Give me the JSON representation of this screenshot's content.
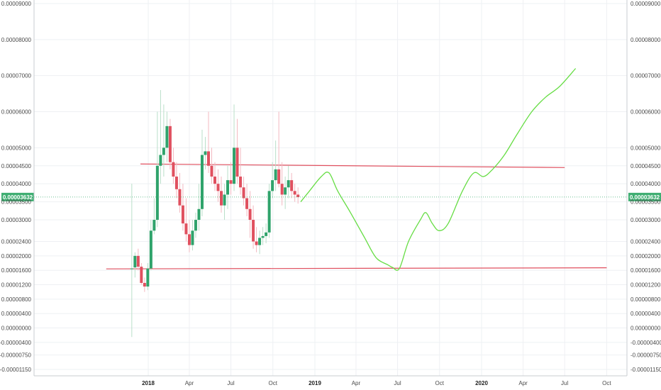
{
  "chart_data": {
    "type": "candlestick",
    "instrument": "price",
    "ylim": [
      -1.15e-05,
      9e-05
    ],
    "y_ticks": [
      {
        "value": 9e-05,
        "label": "0.00009000"
      },
      {
        "value": 8e-05,
        "label": "0.00008000"
      },
      {
        "value": 7e-05,
        "label": "0.00007000"
      },
      {
        "value": 6e-05,
        "label": "0.00006000"
      },
      {
        "value": 5e-05,
        "label": "0.00005000"
      },
      {
        "value": 4.5e-05,
        "label": "0.00004500"
      },
      {
        "value": 4e-05,
        "label": "0.00004000"
      },
      {
        "value": 3.5e-05,
        "label": "0.00003500"
      },
      {
        "value": 3e-05,
        "label": "0.00003000"
      },
      {
        "value": 2.4e-05,
        "label": "0.00002400"
      },
      {
        "value": 2e-05,
        "label": "0.00002000"
      },
      {
        "value": 1.6e-05,
        "label": "0.00001600"
      },
      {
        "value": 1.2e-05,
        "label": "0.00001200"
      },
      {
        "value": 8e-06,
        "label": "0.00000800"
      },
      {
        "value": 4e-06,
        "label": "0.00000400"
      },
      {
        "value": 0.0,
        "label": "0.00000000"
      },
      {
        "value": -4e-06,
        "label": "-0.00000400"
      },
      {
        "value": -7.5e-06,
        "label": "-0.00000750"
      },
      {
        "value": -1.15e-05,
        "label": "-0.00001150"
      }
    ],
    "x_ticks": [
      {
        "date": "2018-01-01",
        "label": "2018",
        "bold": true
      },
      {
        "date": "2018-04-01",
        "label": "Apr",
        "bold": false
      },
      {
        "date": "2018-07-01",
        "label": "Jul",
        "bold": false
      },
      {
        "date": "2018-10-01",
        "label": "Oct",
        "bold": false
      },
      {
        "date": "2019-01-01",
        "label": "2019",
        "bold": true
      },
      {
        "date": "2019-04-01",
        "label": "Apr",
        "bold": false
      },
      {
        "date": "2019-07-01",
        "label": "Jul",
        "bold": false
      },
      {
        "date": "2019-10-01",
        "label": "Oct",
        "bold": false
      },
      {
        "date": "2020-01-01",
        "label": "2020",
        "bold": true
      },
      {
        "date": "2020-04-01",
        "label": "Apr",
        "bold": false
      },
      {
        "date": "2020-07-01",
        "label": "Jul",
        "bold": false
      },
      {
        "date": "2020-10-01",
        "label": "Oct",
        "bold": false
      }
    ],
    "current_price": {
      "value": 3.632e-05,
      "label": "0.00003632"
    },
    "candles": [
      {
        "date": "2017-11-26",
        "o": 1.65e-05,
        "h": 4e-05,
        "l": -2.5e-06,
        "c": 1.65e-05
      },
      {
        "date": "2017-12-03",
        "o": 1.68e-05,
        "h": 2.1e-05,
        "l": 1.4e-05,
        "c": 2e-05
      },
      {
        "date": "2017-12-10",
        "o": 2e-05,
        "h": 2.2e-05,
        "l": 1.6e-05,
        "c": 1.7e-05
      },
      {
        "date": "2017-12-17",
        "o": 1.7e-05,
        "h": 1.8e-05,
        "l": 1.2e-05,
        "c": 1.25e-05
      },
      {
        "date": "2017-12-24",
        "o": 1.25e-05,
        "h": 1.4e-05,
        "l": 1e-05,
        "c": 1.15e-05
      },
      {
        "date": "2017-12-31",
        "o": 1.15e-05,
        "h": 1.8e-05,
        "l": 1.05e-05,
        "c": 1.65e-05
      },
      {
        "date": "2018-01-07",
        "o": 1.65e-05,
        "h": 3e-05,
        "l": 1.6e-05,
        "c": 2.7e-05
      },
      {
        "date": "2018-01-14",
        "o": 2.7e-05,
        "h": 3.6e-05,
        "l": 2.6e-05,
        "c": 3e-05
      },
      {
        "date": "2018-01-21",
        "o": 3e-05,
        "h": 6e-05,
        "l": 2.8e-05,
        "c": 4.5e-05
      },
      {
        "date": "2018-01-28",
        "o": 4.5e-05,
        "h": 6.6e-05,
        "l": 4e-05,
        "c": 4.8e-05
      },
      {
        "date": "2018-02-04",
        "o": 4.8e-05,
        "h": 6.2e-05,
        "l": 4.2e-05,
        "c": 5e-05
      },
      {
        "date": "2018-02-11",
        "o": 5e-05,
        "h": 6e-05,
        "l": 4.6e-05,
        "c": 5.6e-05
      },
      {
        "date": "2018-02-18",
        "o": 5.6e-05,
        "h": 5.8e-05,
        "l": 4.4e-05,
        "c": 4.6e-05
      },
      {
        "date": "2018-02-25",
        "o": 4.6e-05,
        "h": 5e-05,
        "l": 4e-05,
        "c": 4.2e-05
      },
      {
        "date": "2018-03-04",
        "o": 4.2e-05,
        "h": 4.6e-05,
        "l": 3.6e-05,
        "c": 3.85e-05
      },
      {
        "date": "2018-03-11",
        "o": 3.85e-05,
        "h": 4.3e-05,
        "l": 3.2e-05,
        "c": 3.4e-05
      },
      {
        "date": "2018-03-18",
        "o": 3.4e-05,
        "h": 4e-05,
        "l": 2.7e-05,
        "c": 2.9e-05
      },
      {
        "date": "2018-03-25",
        "o": 2.9e-05,
        "h": 3.6e-05,
        "l": 2.4e-05,
        "c": 2.6e-05
      },
      {
        "date": "2018-04-01",
        "o": 2.6e-05,
        "h": 3e-05,
        "l": 2.1e-05,
        "c": 2.3e-05
      },
      {
        "date": "2018-04-08",
        "o": 2.3e-05,
        "h": 3e-05,
        "l": 2.15e-05,
        "c": 2.7e-05
      },
      {
        "date": "2018-04-15",
        "o": 2.7e-05,
        "h": 3.2e-05,
        "l": 2.5e-05,
        "c": 3e-05
      },
      {
        "date": "2018-04-22",
        "o": 3e-05,
        "h": 4e-05,
        "l": 2.7e-05,
        "c": 3.3e-05
      },
      {
        "date": "2018-04-29",
        "o": 3.3e-05,
        "h": 5.5e-05,
        "l": 3.1e-05,
        "c": 4.8e-05
      },
      {
        "date": "2018-05-06",
        "o": 4.8e-05,
        "h": 5.3e-05,
        "l": 4.4e-05,
        "c": 4.9e-05
      },
      {
        "date": "2018-05-13",
        "o": 4.9e-05,
        "h": 6e-05,
        "l": 4.3e-05,
        "c": 4.5e-05
      },
      {
        "date": "2018-05-20",
        "o": 4.5e-05,
        "h": 5e-05,
        "l": 4e-05,
        "c": 4.2e-05
      },
      {
        "date": "2018-05-27",
        "o": 4.2e-05,
        "h": 4.6e-05,
        "l": 3.8e-05,
        "c": 4e-05
      },
      {
        "date": "2018-06-03",
        "o": 4e-05,
        "h": 4.4e-05,
        "l": 3.5e-05,
        "c": 3.8e-05
      },
      {
        "date": "2018-06-10",
        "o": 3.8e-05,
        "h": 4.2e-05,
        "l": 3.2e-05,
        "c": 3.4e-05
      },
      {
        "date": "2018-06-17",
        "o": 3.4e-05,
        "h": 4e-05,
        "l": 3e-05,
        "c": 3.7e-05
      },
      {
        "date": "2018-06-24",
        "o": 3.7e-05,
        "h": 4.5e-05,
        "l": 3.3e-05,
        "c": 4.1e-05
      },
      {
        "date": "2018-07-01",
        "o": 4.1e-05,
        "h": 4.6e-05,
        "l": 3.7e-05,
        "c": 4e-05
      },
      {
        "date": "2018-07-08",
        "o": 4e-05,
        "h": 6.2e-05,
        "l": 3.8e-05,
        "c": 5e-05
      },
      {
        "date": "2018-07-15",
        "o": 5e-05,
        "h": 5.8e-05,
        "l": 4e-05,
        "c": 4.2e-05
      },
      {
        "date": "2018-07-22",
        "o": 4.2e-05,
        "h": 5e-05,
        "l": 3.7e-05,
        "c": 3.9e-05
      },
      {
        "date": "2018-07-29",
        "o": 3.9e-05,
        "h": 4.2e-05,
        "l": 3.4e-05,
        "c": 3.6e-05
      },
      {
        "date": "2018-08-05",
        "o": 3.6e-05,
        "h": 4e-05,
        "l": 3.1e-05,
        "c": 3.3e-05
      },
      {
        "date": "2018-08-12",
        "o": 3.3e-05,
        "h": 3.8e-05,
        "l": 2.5e-05,
        "c": 3e-05
      },
      {
        "date": "2018-08-19",
        "o": 3e-05,
        "h": 3.4e-05,
        "l": 2.2e-05,
        "c": 2.4e-05
      },
      {
        "date": "2018-08-26",
        "o": 2.4e-05,
        "h": 2.8e-05,
        "l": 2.1e-05,
        "c": 2.3e-05
      },
      {
        "date": "2018-09-02",
        "o": 2.3e-05,
        "h": 2.7e-05,
        "l": 2.05e-05,
        "c": 2.5e-05
      },
      {
        "date": "2018-09-09",
        "o": 2.5e-05,
        "h": 2.8e-05,
        "l": 2.3e-05,
        "c": 2.55e-05
      },
      {
        "date": "2018-09-16",
        "o": 2.55e-05,
        "h": 2.9e-05,
        "l": 2.35e-05,
        "c": 2.65e-05
      },
      {
        "date": "2018-09-23",
        "o": 2.65e-05,
        "h": 4e-05,
        "l": 2.5e-05,
        "c": 3.8e-05
      },
      {
        "date": "2018-09-30",
        "o": 3.8e-05,
        "h": 4.6e-05,
        "l": 3.6e-05,
        "c": 4.1e-05
      },
      {
        "date": "2018-10-07",
        "o": 4.1e-05,
        "h": 5.2e-05,
        "l": 3.8e-05,
        "c": 4.4e-05
      },
      {
        "date": "2018-10-14",
        "o": 4.4e-05,
        "h": 6e-05,
        "l": 3.9e-05,
        "c": 4e-05
      },
      {
        "date": "2018-10-21",
        "o": 4e-05,
        "h": 4.6e-05,
        "l": 3.4e-05,
        "c": 3.7e-05
      },
      {
        "date": "2018-10-28",
        "o": 3.7e-05,
        "h": 4.2e-05,
        "l": 3.3e-05,
        "c": 3.9e-05
      },
      {
        "date": "2018-11-04",
        "o": 3.9e-05,
        "h": 4.5e-05,
        "l": 3.6e-05,
        "c": 4.1e-05
      },
      {
        "date": "2018-11-11",
        "o": 4.1e-05,
        "h": 4.3e-05,
        "l": 3.6e-05,
        "c": 3.8e-05
      },
      {
        "date": "2018-11-18",
        "o": 3.8e-05,
        "h": 4e-05,
        "l": 3.5e-05,
        "c": 3.7e-05
      },
      {
        "date": "2018-11-25",
        "o": 3.7e-05,
        "h": 3.9e-05,
        "l": 3.45e-05,
        "c": 3.63e-05
      }
    ],
    "projection": [
      {
        "date": "2018-12-01",
        "y": 3.5e-05
      },
      {
        "date": "2018-12-20",
        "y": 3.8e-05
      },
      {
        "date": "2019-01-15",
        "y": 4.2e-05
      },
      {
        "date": "2019-02-01",
        "y": 4.3e-05
      },
      {
        "date": "2019-02-20",
        "y": 3.8e-05
      },
      {
        "date": "2019-03-20",
        "y": 3.2e-05
      },
      {
        "date": "2019-04-20",
        "y": 2.5e-05
      },
      {
        "date": "2019-05-15",
        "y": 1.95e-05
      },
      {
        "date": "2019-06-10",
        "y": 1.75e-05
      },
      {
        "date": "2019-06-20",
        "y": 1.68e-05
      },
      {
        "date": "2019-07-05",
        "y": 1.65e-05
      },
      {
        "date": "2019-07-25",
        "y": 2.4e-05
      },
      {
        "date": "2019-08-20",
        "y": 3e-05
      },
      {
        "date": "2019-09-01",
        "y": 3.2e-05
      },
      {
        "date": "2019-09-15",
        "y": 2.9e-05
      },
      {
        "date": "2019-09-30",
        "y": 2.7e-05
      },
      {
        "date": "2019-10-20",
        "y": 2.9e-05
      },
      {
        "date": "2019-11-20",
        "y": 3.8e-05
      },
      {
        "date": "2019-12-15",
        "y": 4.3e-05
      },
      {
        "date": "2020-01-05",
        "y": 4.2e-05
      },
      {
        "date": "2020-01-25",
        "y": 4.4e-05
      },
      {
        "date": "2020-02-20",
        "y": 4.8e-05
      },
      {
        "date": "2020-03-20",
        "y": 5.4e-05
      },
      {
        "date": "2020-04-20",
        "y": 6e-05
      },
      {
        "date": "2020-05-20",
        "y": 6.4e-05
      },
      {
        "date": "2020-06-20",
        "y": 6.7e-05
      },
      {
        "date": "2020-07-25",
        "y": 7.2e-05
      }
    ],
    "trend_lines": [
      {
        "name": "resistance",
        "x0": "2017-12-15",
        "y0": 4.55e-05,
        "x1": "2020-07-01",
        "y1": 4.45e-05
      },
      {
        "name": "support",
        "x0": "2017-10-01",
        "y0": 1.64e-05,
        "x1": "2020-10-01",
        "y1": 1.67e-05
      }
    ],
    "colors": {
      "up": "#2fa36b",
      "down": "#e0505f",
      "up_wick": "#b9dfc9",
      "down_wick": "#f3b8c0",
      "projection": "#66dd44",
      "trend": "#e0505f",
      "price_label_bg": "#3fae72",
      "price_line": "#3fae72"
    },
    "grid": true
  }
}
